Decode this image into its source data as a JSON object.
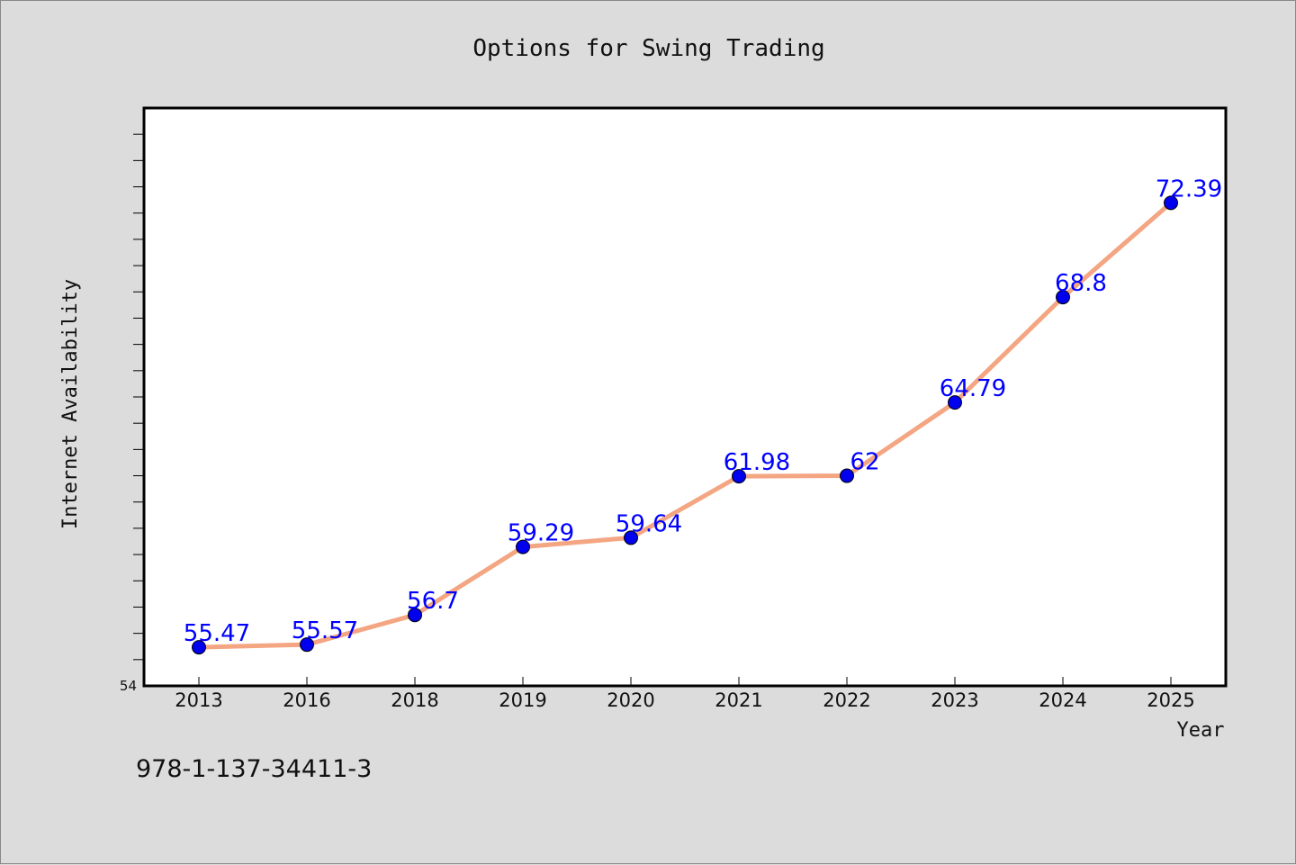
{
  "chart_data": {
    "type": "line",
    "title": "Options for Swing Trading",
    "xlabel": "Year",
    "ylabel": "Internet Availability",
    "categories": [
      "2013",
      "2016",
      "2018",
      "2019",
      "2020",
      "2021",
      "2022",
      "2023",
      "2024",
      "2025"
    ],
    "series": [
      {
        "values": [
          55.47,
          55.57,
          56.7,
          59.29,
          59.64,
          61.98,
          62,
          64.79,
          68.8,
          72.39
        ],
        "data_labels": [
          "55.47",
          "55.57",
          "56.7",
          "59.29",
          "59.64",
          "61.98",
          "62",
          "64.79",
          "68.8",
          "72.39"
        ],
        "line_color": "#f4a582",
        "marker_color": "#0000ee"
      }
    ],
    "y_tick_labels": [
      "54"
    ],
    "ylim": [
      54,
      76
    ],
    "grid": false,
    "legend": false,
    "background_color": "#dcdcdc",
    "plot_background_color": "#ffffff",
    "label_color": "#0000ff"
  },
  "footnote": "978-1-137-34411-3"
}
